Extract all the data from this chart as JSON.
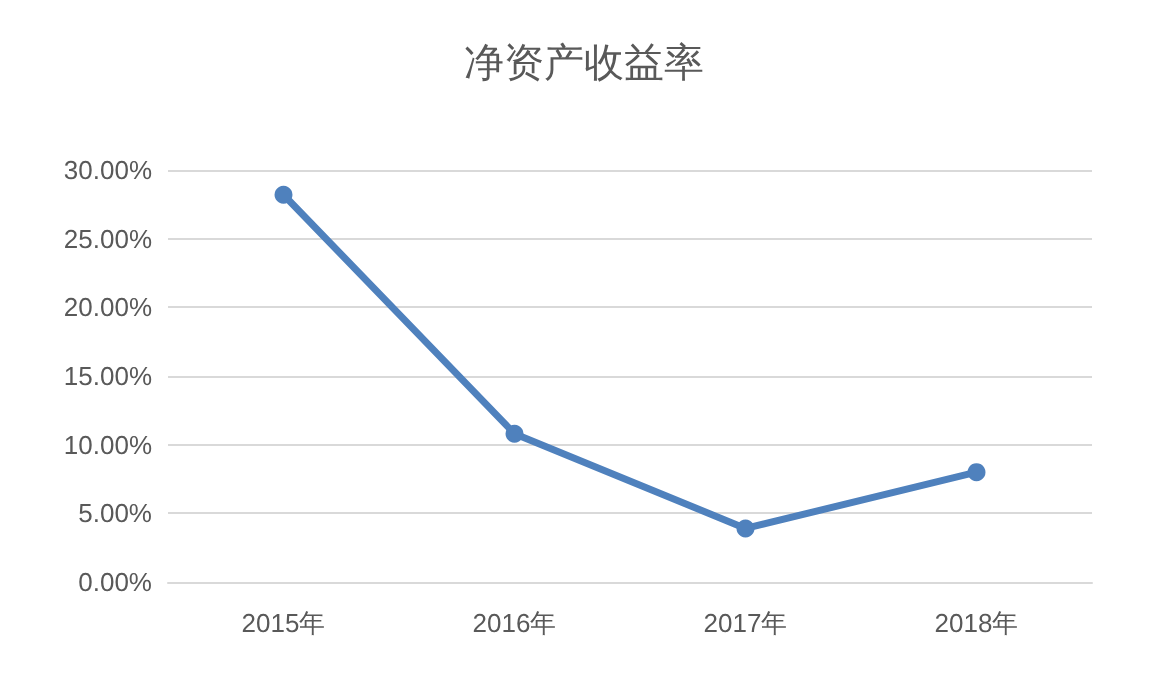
{
  "chart_data": {
    "type": "line",
    "title": "净资产收益率",
    "categories": [
      "2015年",
      "2016年",
      "2017年",
      "2018年"
    ],
    "series": [
      {
        "color": "#4f81bd",
        "values": [
          28.2,
          10.8,
          3.9,
          8.0
        ]
      }
    ],
    "ylim": [
      0,
      30
    ],
    "yticks": [
      {
        "value": 0,
        "label": "0.00%"
      },
      {
        "value": 5,
        "label": "5.00%"
      },
      {
        "value": 10,
        "label": "10.00%"
      },
      {
        "value": 15,
        "label": "15.00%"
      },
      {
        "value": 20,
        "label": "20.00%"
      },
      {
        "value": 25,
        "label": "25.00%"
      },
      {
        "value": 30,
        "label": "30.00%"
      }
    ],
    "grid": "y",
    "marker": "circle",
    "line_style": "solid"
  }
}
